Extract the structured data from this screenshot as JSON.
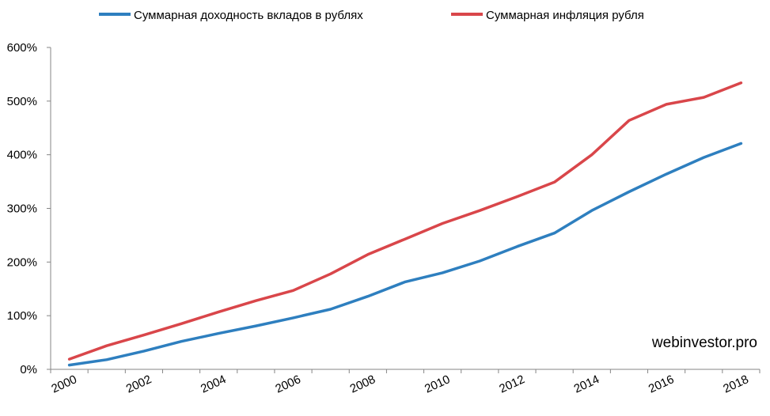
{
  "chart_data": {
    "type": "line",
    "x_tick_labels": [
      "2000",
      "2002",
      "2004",
      "2006",
      "2008",
      "2010",
      "2012",
      "2014",
      "2016",
      "2018"
    ],
    "y_tick_labels": [
      "0%",
      "100%",
      "200%",
      "300%",
      "400%",
      "500%",
      "600%"
    ],
    "ylim": [
      0,
      600
    ],
    "x": [
      2000,
      2001,
      2002,
      2003,
      2004,
      2005,
      2006,
      2007,
      2008,
      2009,
      2010,
      2011,
      2012,
      2013,
      2014,
      2015,
      2016,
      2017,
      2018
    ],
    "series": [
      {
        "name": "Суммарная доходность вкладов в рублях",
        "color": "#2e7fbf",
        "values": [
          8,
          18,
          34,
          52,
          67,
          81,
          96,
          112,
          136,
          163,
          180,
          202,
          229,
          254,
          296,
          331,
          364,
          395,
          421
        ]
      },
      {
        "name": "Суммарная инфляция  рубля",
        "color": "#d9464a",
        "values": [
          19,
          44,
          64,
          85,
          107,
          128,
          147,
          178,
          214,
          243,
          272,
          296,
          322,
          349,
          400,
          464,
          494,
          507,
          534
        ]
      }
    ],
    "grid": false,
    "legend_position": "top",
    "annotation": "webinvestor.pro"
  }
}
